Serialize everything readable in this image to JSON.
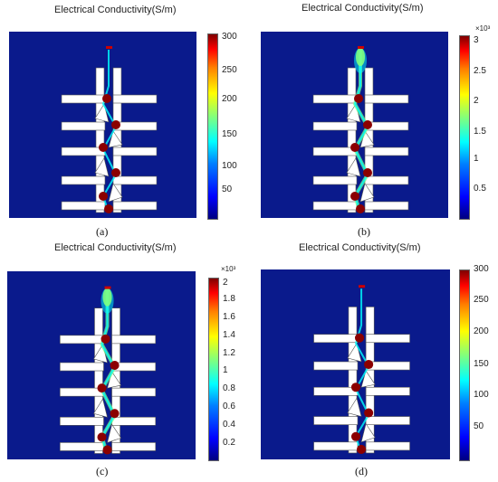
{
  "panels": [
    {
      "id": "a",
      "title": "Electrical Conductivity(S/m)",
      "caption": "(a)",
      "multiplier": "",
      "ticks": [
        "300",
        "250",
        "200",
        "150",
        "100",
        "50"
      ]
    },
    {
      "id": "b",
      "title": "Electrical Conductivity(S/m)",
      "caption": "(b)",
      "multiplier": "×10³",
      "ticks": [
        "3",
        "2.5",
        "2",
        "1.5",
        "1",
        "0.5"
      ]
    },
    {
      "id": "c",
      "title": "Electrical Conductivity(S/m)",
      "caption": "(c)",
      "multiplier": "×10³",
      "ticks": [
        "2",
        "1.8",
        "1.6",
        "1.4",
        "1.2",
        "1",
        "0.8",
        "0.6",
        "0.4",
        "0.2"
      ]
    },
    {
      "id": "d",
      "title": "Electrical Conductivity(S/m)",
      "caption": "(d)",
      "multiplier": "",
      "ticks": [
        "300",
        "250",
        "200",
        "150",
        "100",
        "50"
      ]
    }
  ],
  "colors": {
    "background": "#0a1a8c",
    "structure": "#ffffff",
    "droplet": "#8b0000"
  }
}
